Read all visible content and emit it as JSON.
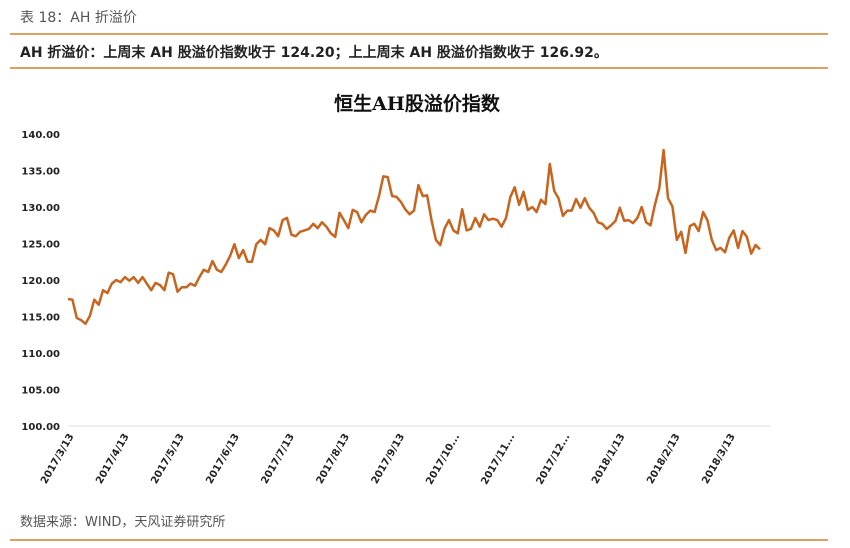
{
  "caption": "表 18：AH 折溢价",
  "summary": "AH 折溢价：上周末 AH 股溢价指数收于 124.20；上上周末 AH 股溢价指数收于 126.92。",
  "source": "数据来源：WIND，天风证券研究所",
  "colors": {
    "line": "#c8641e",
    "rule": "#e0a060"
  },
  "chart_data": {
    "type": "line",
    "title": "恒生AH股溢价指数",
    "xlabel": "",
    "ylabel": "",
    "ylim": [
      100,
      140
    ],
    "yticks": [
      "100.00",
      "105.00",
      "110.00",
      "115.00",
      "120.00",
      "125.00",
      "130.00",
      "135.00",
      "140.00"
    ],
    "xticks": [
      "2017/3/13",
      "2017/4/13",
      "2017/5/13",
      "2017/6/13",
      "2017/7/13",
      "2017/8/13",
      "2017/9/13",
      "2017/10...",
      "2017/11...",
      "2017/12...",
      "2018/1/13",
      "2018/2/13",
      "2018/3/13"
    ],
    "grid": false,
    "series": [
      {
        "name": "恒生AH股溢价指数",
        "values": [
          117.4,
          117.3,
          114.8,
          114.5,
          114.0,
          115.1,
          117.3,
          116.6,
          118.6,
          118.2,
          119.5,
          120.0,
          119.7,
          120.4,
          119.9,
          120.4,
          119.6,
          120.4,
          119.5,
          118.6,
          119.6,
          119.3,
          118.6,
          121.0,
          120.8,
          118.4,
          119.0,
          119.0,
          119.5,
          119.2,
          120.4,
          121.4,
          121.1,
          122.6,
          121.4,
          121.1,
          122.1,
          123.3,
          124.9,
          123.0,
          124.1,
          122.5,
          122.5,
          124.9,
          125.5,
          124.9,
          127.1,
          126.8,
          126.0,
          128.2,
          128.5,
          126.2,
          126.0,
          126.6,
          126.8,
          127.0,
          127.7,
          127.1,
          127.9,
          127.3,
          126.4,
          125.9,
          129.2,
          128.2,
          127.1,
          129.6,
          129.3,
          127.9,
          128.9,
          129.5,
          129.3,
          131.5,
          134.2,
          134.1,
          131.5,
          131.4,
          130.7,
          129.7,
          129.0,
          129.5,
          133.0,
          131.5,
          131.6,
          128.2,
          125.5,
          124.8,
          127.1,
          128.2,
          126.8,
          126.4,
          129.7,
          126.8,
          127.0,
          128.5,
          127.3,
          129.0,
          128.2,
          128.4,
          128.2,
          127.3,
          128.5,
          131.4,
          132.7,
          130.3,
          132.1,
          129.6,
          130.0,
          129.3,
          131.0,
          130.4,
          135.9,
          132.2,
          131.2,
          128.8,
          129.5,
          129.5,
          131.1,
          129.9,
          131.2,
          129.9,
          129.2,
          127.9,
          127.7,
          127.0,
          127.5,
          128.1,
          129.9,
          128.1,
          128.2,
          127.8,
          128.5,
          130.0,
          127.9,
          127.5,
          130.3,
          132.6,
          137.8,
          131.2,
          130.1,
          125.5,
          126.6,
          123.7,
          127.4,
          127.7,
          126.7,
          129.3,
          128.2,
          125.5,
          124.1,
          124.4,
          123.8,
          125.8,
          126.8,
          124.4,
          126.7,
          125.9,
          123.6,
          124.8,
          124.2
        ]
      }
    ]
  }
}
